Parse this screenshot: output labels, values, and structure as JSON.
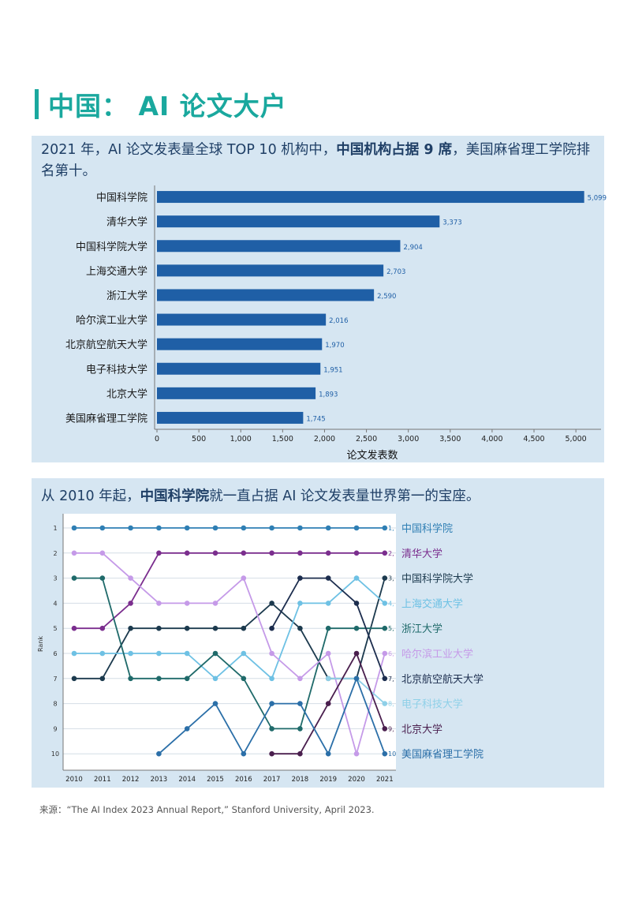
{
  "page": {
    "title": "中国： AI 论文大户",
    "source": "来源：“The AI Index 2023 Annual Report,” Stanford University,  April 2023."
  },
  "chart1_subtitle": {
    "part1": "2021 年，AI 论文发表量全球 TOP 10 机构中，",
    "bold": "中国机构占据 9 席",
    "part2": "，美国麻省理工学院排名第十。"
  },
  "chart2_subtitle": {
    "part1": "从 2010 年起，",
    "bold": "中国科学院",
    "part2": "就一直占据 AI 论文发表量世界第一的宝座。"
  },
  "colors": {
    "accent": "#1aa89e",
    "bar": "#1f5fa6",
    "panel": "#d6e6f2"
  },
  "chart_data": [
    {
      "type": "bar",
      "orientation": "horizontal",
      "categories": [
        "中国科学院",
        "清华大学",
        "中国科学院大学",
        "上海交通大学",
        "浙江大学",
        "哈尔滨工业大学",
        "北京航空航天大学",
        "电子科技大学",
        "北京大学",
        "美国麻省理工学院"
      ],
      "values": [
        5099,
        3373,
        2904,
        2703,
        2590,
        2016,
        1970,
        1951,
        1893,
        1745
      ],
      "value_labels": [
        "5,099",
        "3,373",
        "2,904",
        "2,703",
        "2,590",
        "2,016",
        "1,970",
        "1,951",
        "1,893",
        "1,745"
      ],
      "xlabel": "论文发表数",
      "xlim": [
        0,
        5300
      ],
      "xticks": [
        0,
        500,
        1000,
        1500,
        2000,
        2500,
        3000,
        3500,
        4000,
        4500,
        5000
      ],
      "xtick_labels": [
        "0",
        "500",
        "1,000",
        "1,500",
        "2,000",
        "2,500",
        "3,000",
        "3,500",
        "4,000",
        "4,500",
        "5,000"
      ]
    },
    {
      "type": "line",
      "ylabel": "Rank",
      "y_inverted": true,
      "ylim": [
        1,
        10
      ],
      "yticks": [
        "1",
        "2",
        "3",
        "4",
        "5",
        "6",
        "7",
        "8",
        "9",
        "10"
      ],
      "x": [
        "2010",
        "2011",
        "2012",
        "2013",
        "2014",
        "2015",
        "2016",
        "2017",
        "2018",
        "2019",
        "2020",
        "2021"
      ],
      "series": [
        {
          "name": "中国科学院",
          "end_label": "1,",
          "color": "#2f7fb4",
          "values": [
            1,
            1,
            1,
            1,
            1,
            1,
            1,
            1,
            1,
            1,
            1,
            1
          ]
        },
        {
          "name": "清华大学",
          "end_label": "2,",
          "color": "#7b2e8e",
          "values": [
            5,
            5,
            4,
            2,
            2,
            2,
            2,
            2,
            2,
            2,
            2,
            2
          ]
        },
        {
          "name": "中国科学院大学",
          "end_label": "3,",
          "color": "#1c3a4e",
          "values": [
            7,
            7,
            5,
            5,
            5,
            5,
            5,
            4,
            5,
            7,
            7,
            3
          ]
        },
        {
          "name": "上海交通大学",
          "end_label": "4,",
          "color": "#6ec1e4",
          "values": [
            6,
            6,
            6,
            6,
            6,
            7,
            6,
            7,
            4,
            4,
            3,
            4
          ]
        },
        {
          "name": "浙江大学",
          "end_label": "5,",
          "color": "#1f6a6a",
          "values": [
            3,
            3,
            7,
            7,
            7,
            6,
            7,
            9,
            9,
            5,
            5,
            5
          ]
        },
        {
          "name": "哈尔滨工业大学",
          "end_label": "6,",
          "color": "#c59ae8",
          "values": [
            2,
            2,
            3,
            4,
            4,
            4,
            3,
            6,
            7,
            6,
            10,
            6
          ]
        },
        {
          "name": "北京航空航天大学",
          "end_label": "7,",
          "color": "#1c2d4e",
          "values": [
            null,
            null,
            null,
            null,
            null,
            null,
            null,
            5,
            3,
            3,
            4,
            7
          ]
        },
        {
          "name": "电子科技大学",
          "end_label": "8,",
          "color": "#8fd0e8",
          "values": [
            null,
            null,
            null,
            null,
            null,
            null,
            null,
            null,
            null,
            7,
            7,
            8
          ]
        },
        {
          "name": "北京大学",
          "end_label": "9,",
          "color": "#4a1f4e",
          "values": [
            null,
            null,
            null,
            null,
            null,
            null,
            null,
            10,
            10,
            8,
            6,
            9
          ]
        },
        {
          "name": "美国麻省理工学院",
          "end_label": "10",
          "color": "#2b6fa8",
          "values": [
            null,
            null,
            null,
            10,
            9,
            8,
            10,
            8,
            8,
            10,
            7,
            10
          ]
        }
      ]
    }
  ]
}
